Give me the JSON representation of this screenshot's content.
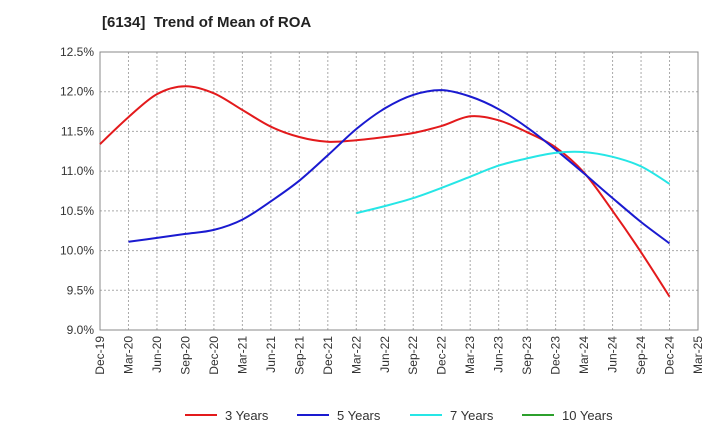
{
  "chart_data": {
    "type": "line",
    "title": "[6134]  Trend of Mean of ROA",
    "xlabel": "",
    "ylabel": "",
    "y_unit": "%",
    "ylim": [
      9.0,
      12.5
    ],
    "yticks": [
      9.0,
      9.5,
      10.0,
      10.5,
      11.0,
      11.5,
      12.0,
      12.5
    ],
    "ytick_labels": [
      "9.0%",
      "9.5%",
      "10.0%",
      "10.5%",
      "11.0%",
      "11.5%",
      "12.0%",
      "12.5%"
    ],
    "x_tick_labels": [
      "Dec-19",
      "Mar-20",
      "Jun-20",
      "Sep-20",
      "Dec-20",
      "Mar-21",
      "Jun-21",
      "Sep-21",
      "Dec-21",
      "Mar-22",
      "Jun-22",
      "Sep-22",
      "Dec-22",
      "Mar-23",
      "Jun-23",
      "Sep-23",
      "Dec-23",
      "Mar-24",
      "Jun-24",
      "Sep-24",
      "Dec-24",
      "Mar-25"
    ],
    "grid": true,
    "legend_position": "bottom",
    "series": [
      {
        "name": "3 Years",
        "color": "#e31a1c",
        "x": [
          "Dec-19",
          "Mar-20",
          "Jun-20",
          "Sep-20",
          "Dec-20",
          "Mar-21",
          "Jun-21",
          "Sep-21",
          "Dec-21",
          "Mar-22",
          "Jun-22",
          "Sep-22",
          "Dec-22",
          "Mar-23",
          "Jun-23",
          "Sep-23",
          "Dec-23",
          "Mar-24",
          "Jun-24",
          "Sep-24",
          "Dec-24"
        ],
        "values": [
          11.34,
          11.68,
          11.97,
          12.07,
          11.98,
          11.77,
          11.56,
          11.43,
          11.37,
          11.39,
          11.43,
          11.48,
          11.57,
          11.69,
          11.64,
          11.49,
          11.3,
          10.98,
          10.5,
          9.98,
          9.42
        ]
      },
      {
        "name": "5 Years",
        "color": "#1a1ad0",
        "x": [
          "Mar-20",
          "Jun-20",
          "Sep-20",
          "Dec-20",
          "Mar-21",
          "Jun-21",
          "Sep-21",
          "Dec-21",
          "Mar-22",
          "Jun-22",
          "Sep-22",
          "Dec-22",
          "Mar-23",
          "Jun-23",
          "Sep-23",
          "Dec-23",
          "Mar-24",
          "Jun-24",
          "Sep-24",
          "Dec-24"
        ],
        "values": [
          10.11,
          10.16,
          10.21,
          10.26,
          10.39,
          10.62,
          10.88,
          11.2,
          11.53,
          11.79,
          11.96,
          12.02,
          11.94,
          11.78,
          11.55,
          11.27,
          10.97,
          10.66,
          10.36,
          10.09
        ]
      },
      {
        "name": "7 Years",
        "color": "#26e6e6",
        "x": [
          "Mar-22",
          "Jun-22",
          "Sep-22",
          "Dec-22",
          "Mar-23",
          "Jun-23",
          "Sep-23",
          "Dec-23",
          "Mar-24",
          "Jun-24",
          "Sep-24",
          "Dec-24"
        ],
        "values": [
          10.47,
          10.56,
          10.66,
          10.79,
          10.93,
          11.07,
          11.16,
          11.23,
          11.24,
          11.18,
          11.06,
          10.84
        ]
      },
      {
        "name": "10 Years",
        "color": "#2ca02c",
        "x": [],
        "values": []
      }
    ]
  }
}
